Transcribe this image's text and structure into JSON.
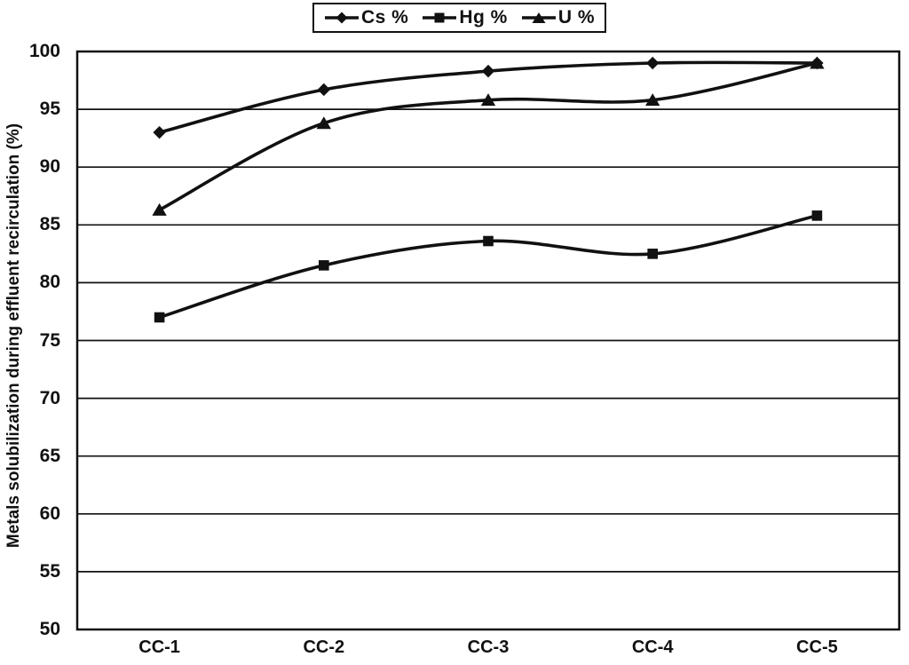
{
  "page": {
    "background": "#ffffff",
    "ink_color": "#111111"
  },
  "chart_data": {
    "type": "line",
    "title": "",
    "xlabel": "",
    "ylabel": "Metals solubilization during effluent recirculation (%)",
    "categories": [
      "CC-1",
      "CC-2",
      "CC-3",
      "CC-4",
      "CC-5"
    ],
    "series": [
      {
        "name": "Cs %",
        "marker": "diamond",
        "values": [
          93,
          96.7,
          98.3,
          99,
          99
        ]
      },
      {
        "name": "Hg %",
        "marker": "square",
        "values": [
          77,
          81.5,
          83.6,
          82.5,
          85.8
        ]
      },
      {
        "name": "U %",
        "marker": "triangle",
        "values": [
          86.3,
          93.8,
          95.8,
          95.8,
          99
        ]
      }
    ],
    "ylim": [
      50,
      100
    ],
    "y_ticks": [
      100,
      95,
      90,
      85,
      80,
      75,
      70,
      65,
      60,
      55,
      50
    ],
    "grid": "horizontal",
    "legend_position": "top-center",
    "line_color": "#111111",
    "smoothed": true
  }
}
